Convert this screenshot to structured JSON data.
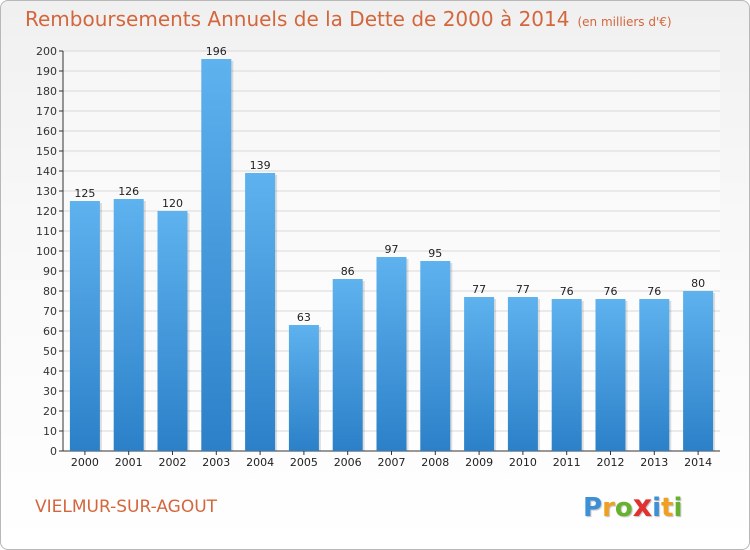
{
  "title": "Remboursements Annuels de la Dette de 2000 à 2014",
  "unit_note": "(en milliers d'€)",
  "place_name": "VIELMUR-SUR-AGOUT",
  "logo": {
    "letters": [
      "P",
      "r",
      "o",
      "x",
      "i",
      "t",
      "i"
    ],
    "colors": [
      "#3d8fd6",
      "#f0a020",
      "#66b22e",
      "#e03030",
      "#3d8fd6",
      "#f0a020",
      "#66b22e"
    ]
  },
  "colors": {
    "title": "#d4663c",
    "bar_light": "#5eb2ee",
    "bar_dark": "#2c80c8",
    "grid": "#d9d9d9",
    "axis": "#333333"
  },
  "chart_data": {
    "type": "bar",
    "title": "Remboursements Annuels de la Dette de 2000 à 2014",
    "xlabel": "",
    "ylabel": "",
    "categories": [
      "2000",
      "2001",
      "2002",
      "2003",
      "2004",
      "2005",
      "2006",
      "2007",
      "2008",
      "2009",
      "2010",
      "2011",
      "2012",
      "2013",
      "2014"
    ],
    "values": [
      125,
      126,
      120,
      196,
      139,
      63,
      86,
      97,
      95,
      77,
      77,
      76,
      76,
      76,
      80
    ],
    "ylim": [
      0,
      200
    ],
    "ytick_step": 10,
    "grid": true,
    "show_data_labels": true
  }
}
